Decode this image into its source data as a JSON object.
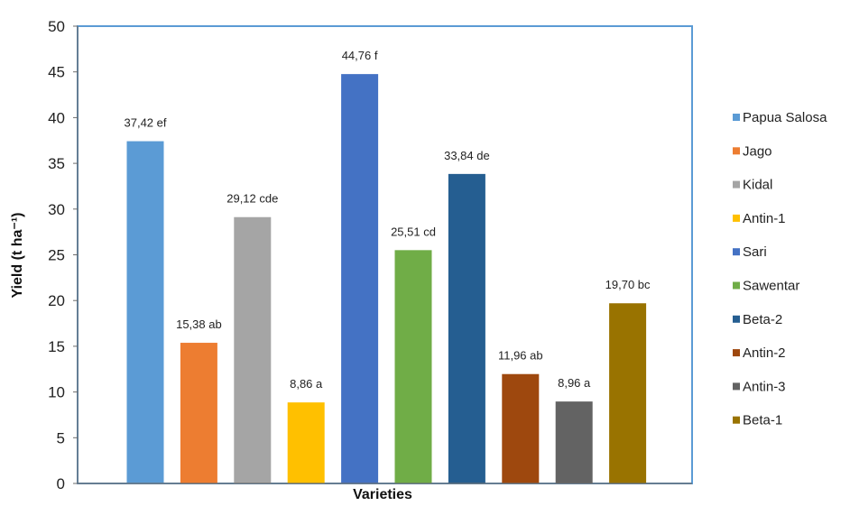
{
  "chart_data": {
    "type": "bar",
    "title": "",
    "xlabel": "Varieties",
    "ylabel": "Yield (t ha⁻¹)",
    "ylim": [
      0,
      50
    ],
    "yticks": [
      0,
      5,
      10,
      15,
      20,
      25,
      30,
      35,
      40,
      45,
      50
    ],
    "grid": false,
    "legend_position": "right",
    "categories": [
      "Papua Salosa",
      "Jago",
      "Kidal",
      "Antin-1",
      "Sari",
      "Sawentar",
      "Beta-2",
      "Antin-2",
      "Antin-3",
      "Beta-1"
    ],
    "values": [
      37.42,
      15.38,
      29.12,
      8.86,
      44.76,
      25.51,
      33.84,
      11.96,
      8.96,
      19.7
    ],
    "data_labels": [
      "37,42 ef",
      "15,38 ab",
      "29,12 cde",
      "8,86 a",
      "44,76 f",
      "25,51 cd",
      "33,84 de",
      "11,96 ab",
      "8,96 a",
      "19,70 bc"
    ],
    "colors": [
      "#5b9bd5",
      "#ed7d31",
      "#a5a5a5",
      "#ffc000",
      "#4472c4",
      "#70ad47",
      "#255e91",
      "#9e480e",
      "#636363",
      "#997300"
    ],
    "frame_color": "#5b9bd5"
  }
}
